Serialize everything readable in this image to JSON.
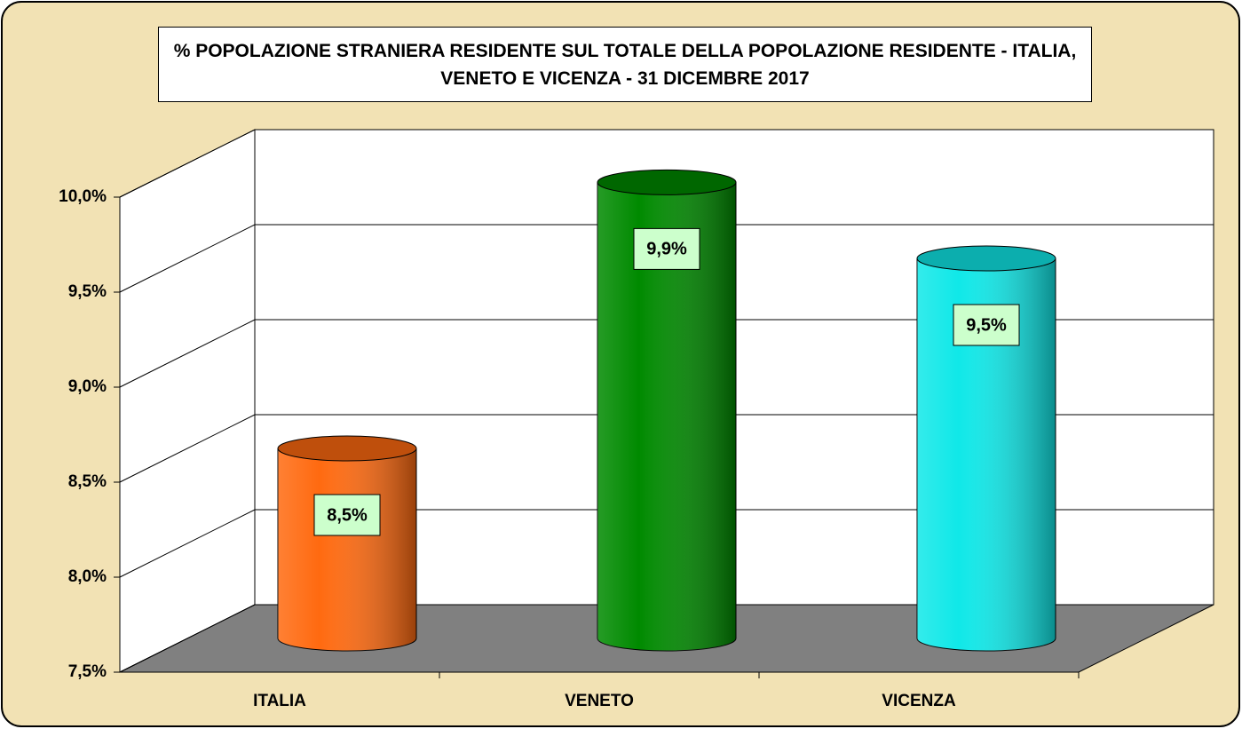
{
  "chart_data": {
    "type": "bar3d",
    "title": "% POPOLAZIONE STRANIERA RESIDENTE SUL TOTALE DELLA POPOLAZIONE RESIDENTE - ITALIA, VENETO E VICENZA - 31 DICEMBRE 2017",
    "categories": [
      "ITALIA",
      "VENETO",
      "VICENZA"
    ],
    "values": [
      8.5,
      9.9,
      9.5
    ],
    "value_labels": [
      "8,5%",
      "9,9%",
      "9,5%"
    ],
    "colors": [
      "#ff6a10",
      "#008a00",
      "#10e8e8"
    ],
    "ylim": [
      7.5,
      10
    ],
    "yticks": [
      {
        "value": 7.5,
        "label": "7,5%"
      },
      {
        "value": 8,
        "label": "8,0%"
      },
      {
        "value": 8.5,
        "label": "8,5%"
      },
      {
        "value": 9,
        "label": "9,0%"
      },
      {
        "value": 9.5,
        "label": "9,5%"
      },
      {
        "value": 10,
        "label": "10,0%"
      }
    ],
    "grid": true
  }
}
